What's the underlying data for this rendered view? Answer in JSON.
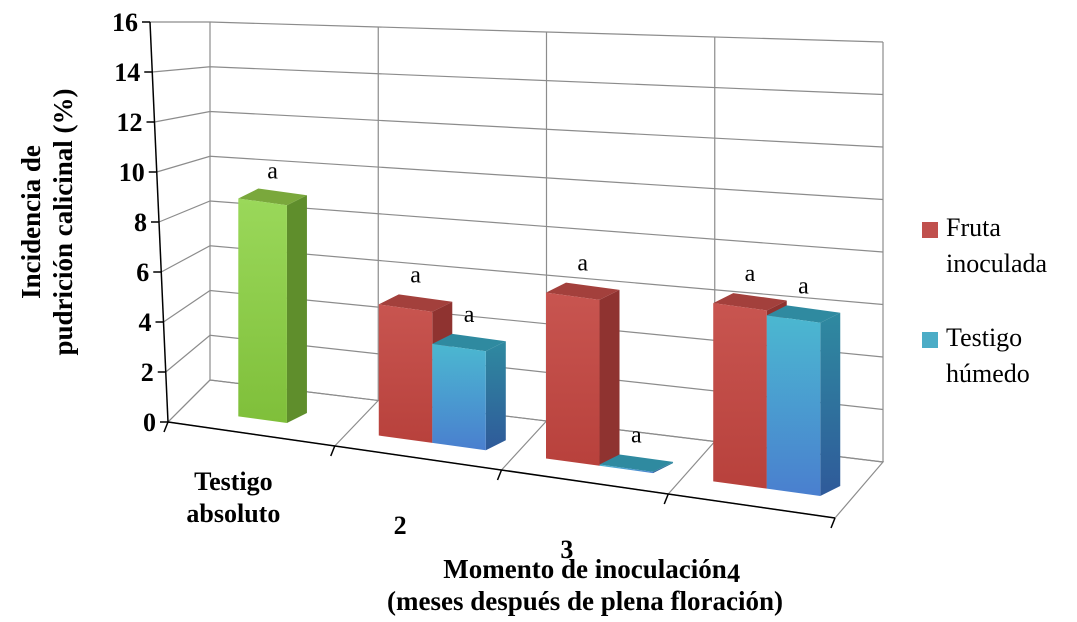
{
  "chart_data": {
    "type": "bar",
    "subtype": "3d-clustered-column",
    "categories": [
      [
        "Testigo",
        "absoluto"
      ],
      [
        "2"
      ],
      [
        "3"
      ],
      [
        "4"
      ]
    ],
    "series": [
      {
        "name": "Fruta inoculada",
        "legend_lines": [
          "Fruta",
          "inoculada"
        ],
        "color": "#c0504d",
        "values": [
          null,
          5.3,
          6.7,
          7.2
        ]
      },
      {
        "name": "Testigo húmedo",
        "legend_lines": [
          "Testigo",
          "húmedo"
        ],
        "color": "#4bacc6",
        "values": [
          null,
          4.0,
          0.0,
          7.0
        ]
      }
    ],
    "standalone_bar": {
      "category_index": 0,
      "value": 8.8,
      "color": "#92d050",
      "label": "a"
    },
    "data_labels": {
      "series": [
        [
          null,
          "a",
          "a",
          "a"
        ],
        [
          null,
          "a",
          "a",
          "a"
        ]
      ]
    },
    "title": "",
    "ylabel_lines": [
      "Incidencia de",
      "pudrición calicinal (%)"
    ],
    "xlabel_lines": [
      "Momento de inoculación",
      "(meses después de plena floración)"
    ],
    "ylim": [
      0,
      16
    ],
    "yticks": [
      "0",
      "2",
      "4",
      "6",
      "8",
      "10",
      "12",
      "14",
      "16"
    ],
    "grid": true,
    "legend_position": "right"
  }
}
